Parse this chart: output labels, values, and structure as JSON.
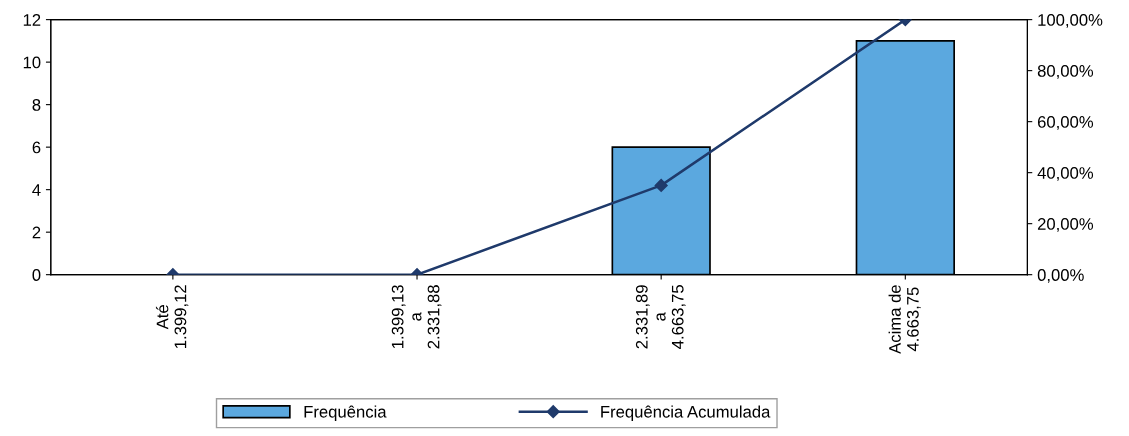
{
  "chart_data": {
    "type": "bar",
    "categories": [
      "Até\n1.399,12",
      "1.399,13\na\n2.331,88",
      "2.331,89\na\n4.663,75",
      "Acima de\n4.663,75"
    ],
    "series": [
      {
        "name": "Frequência",
        "color": "#5ba8df",
        "values": [
          0,
          0,
          6,
          11
        ]
      },
      {
        "name": "Frequência Acumulada",
        "type": "line",
        "axis": "y2",
        "color": "#1f3a6b",
        "values": [
          0,
          0,
          35,
          100
        ]
      }
    ],
    "ylim": [
      0,
      12
    ],
    "yticks": [
      0,
      2,
      4,
      6,
      8,
      10,
      12
    ],
    "y2lim": [
      0,
      100
    ],
    "y2ticks": [
      {
        "value": 0,
        "label": "0,00%"
      },
      {
        "value": 20,
        "label": "20,00%"
      },
      {
        "value": 40,
        "label": "40,00%"
      },
      {
        "value": 60,
        "label": "60,00%"
      },
      {
        "value": 80,
        "label": "80,00%"
      },
      {
        "value": 100,
        "label": "100,00%"
      }
    ],
    "marker": "diamond",
    "legend": "bottom",
    "grid": false
  }
}
